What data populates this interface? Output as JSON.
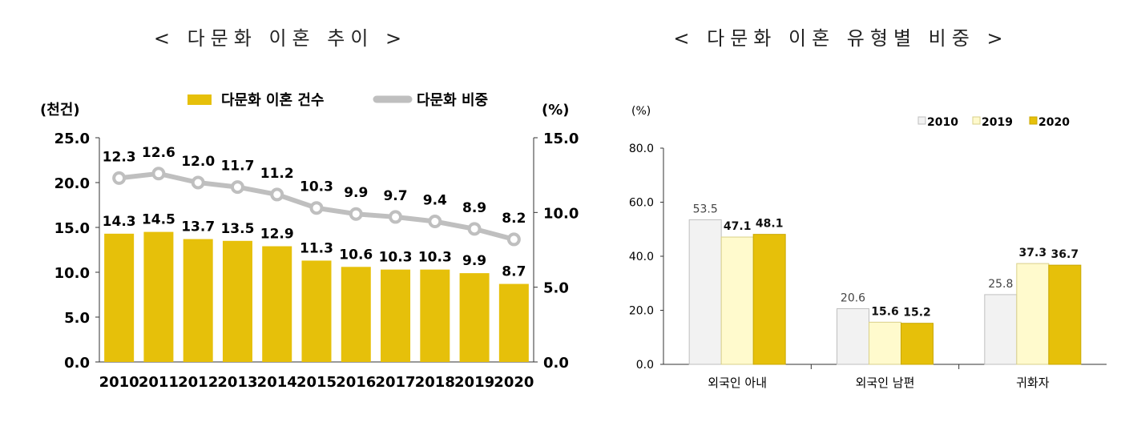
{
  "chart_data": [
    {
      "type": "bar+line",
      "title": "< 다문화 이혼 추이 >",
      "left_unit": "(천건)",
      "right_unit": "(%)",
      "legend_position": "top-center",
      "categories": [
        "2010",
        "2011",
        "2012",
        "2013",
        "2014",
        "2015",
        "2016",
        "2017",
        "2018",
        "2019",
        "2020"
      ],
      "y_ticks_left": [
        "0.0",
        "5.0",
        "10.0",
        "15.0",
        "20.0",
        "25.0"
      ],
      "y_ticks_right": [
        "0.0",
        "5.0",
        "10.0",
        "15.0"
      ],
      "ylim_left": [
        0,
        25
      ],
      "ylim_right": [
        0,
        15
      ],
      "series": [
        {
          "name": "다문화 이혼 건수",
          "type": "bar",
          "axis": "left",
          "color": "#E6C00A",
          "values": [
            14.3,
            14.5,
            13.7,
            13.5,
            12.9,
            11.3,
            10.6,
            10.3,
            10.3,
            9.9,
            8.7
          ]
        },
        {
          "name": "다문화 비중",
          "type": "line",
          "axis": "right",
          "color": "#BFBFBF",
          "values": [
            12.3,
            12.6,
            12.0,
            11.7,
            11.2,
            10.3,
            9.9,
            9.7,
            9.4,
            8.9,
            8.2
          ]
        }
      ]
    },
    {
      "type": "bar",
      "title": "< 다문화 이혼 유형별 비중 >",
      "ylabel": "(%)",
      "legend_position": "top-right",
      "categories": [
        "외국인 아내",
        "외국인 남편",
        "귀화자"
      ],
      "y_ticks": [
        "0.0",
        "20.0",
        "40.0",
        "60.0",
        "80.0"
      ],
      "ylim": [
        0,
        80
      ],
      "series": [
        {
          "name": "2010",
          "color": "#F2F2F2",
          "stroke": "#BFBFBF",
          "values": [
            53.5,
            20.6,
            25.8
          ]
        },
        {
          "name": "2019",
          "color": "#FFFACD",
          "stroke": "#D9D08A",
          "values": [
            47.1,
            15.6,
            37.3
          ]
        },
        {
          "name": "2020",
          "color": "#E6C00A",
          "stroke": "#C9A700",
          "values": [
            48.1,
            15.2,
            36.7
          ]
        }
      ]
    }
  ]
}
